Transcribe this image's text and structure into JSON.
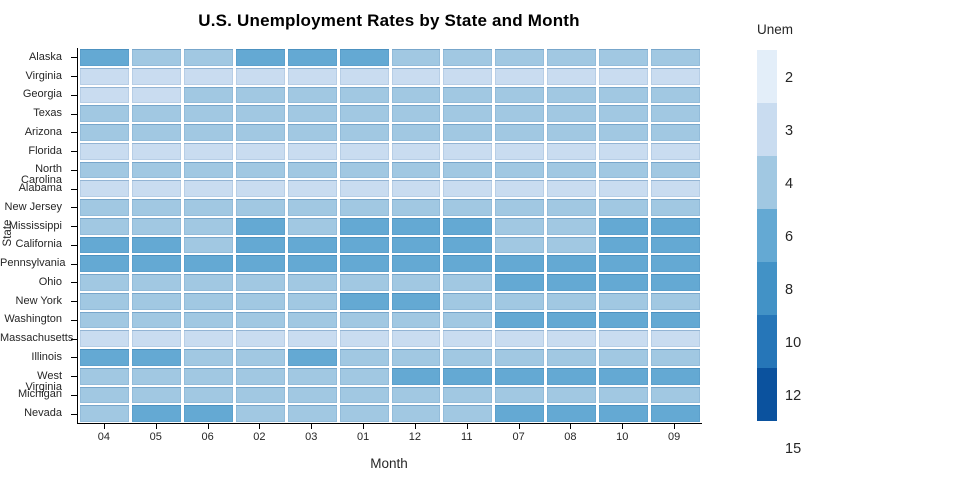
{
  "title": "U.S. Unemployment Rates by State and Month",
  "axes": {
    "x_title": "Month",
    "y_title": "State"
  },
  "legend": {
    "title": "Unem",
    "labels": [
      "2",
      "3",
      "4",
      "6",
      "8",
      "10",
      "12",
      "15"
    ],
    "swatch_colors": [
      "#e3eef9",
      "#c9dcf0",
      "#a1c8e2",
      "#64a9d3",
      "#4292c6",
      "#2676b8",
      "#0b529e"
    ]
  },
  "chart_data": {
    "type": "heatmap",
    "title": "U.S. Unemployment Rates by State and Month",
    "xlabel": "Month",
    "ylabel": "State",
    "legend_title": "Unem",
    "grid": false,
    "legend_position": "right",
    "color_scheme": "blues",
    "color_bins": [
      2,
      3,
      4,
      6,
      8,
      10,
      12,
      15
    ],
    "bin_colors": [
      "#e3eef9",
      "#c9dcf0",
      "#a1c8e2",
      "#64a9d3",
      "#4292c6",
      "#2676b8",
      "#0b529e"
    ],
    "x": [
      "04",
      "05",
      "06",
      "02",
      "03",
      "01",
      "12",
      "11",
      "07",
      "08",
      "10",
      "09"
    ],
    "y": [
      "Alaska",
      "Virginia",
      "Georgia",
      "Texas",
      "Arizona",
      "Florida",
      "North Carolina",
      "Alabama",
      "New Jersey",
      "Mississippi",
      "California",
      "Pennsylvania",
      "Ohio",
      "New York",
      "Washington",
      "Massachusetts",
      "Illinois",
      "West Virginia",
      "Michigan",
      "Nevada"
    ],
    "values": [
      [
        7,
        5,
        5,
        7,
        7,
        7,
        5,
        5,
        5,
        5,
        5,
        5
      ],
      [
        3.5,
        3.5,
        3.5,
        3.5,
        3.5,
        3.5,
        3.5,
        3.5,
        3.5,
        3.5,
        3.5,
        3.5
      ],
      [
        3.5,
        3.5,
        5,
        5,
        5,
        5,
        5,
        5,
        5,
        5,
        5,
        5
      ],
      [
        5,
        5,
        5,
        5,
        5,
        5,
        5,
        5,
        5,
        5,
        5,
        5
      ],
      [
        5,
        5,
        5,
        5,
        5,
        5,
        5,
        5,
        5,
        5,
        5,
        5
      ],
      [
        3.5,
        3.5,
        3.5,
        3.5,
        3.5,
        3.5,
        3.5,
        3.5,
        3.5,
        3.5,
        3.5,
        3.5
      ],
      [
        5,
        5,
        5,
        5,
        5,
        5,
        5,
        5,
        5,
        5,
        5,
        5
      ],
      [
        3.5,
        3.5,
        3.5,
        3.5,
        3.5,
        3.5,
        3.5,
        3.5,
        3.5,
        3.5,
        3.5,
        3.5
      ],
      [
        5,
        5,
        5,
        5,
        5,
        5,
        5,
        5,
        5,
        5,
        5,
        5
      ],
      [
        5,
        5,
        5,
        7,
        5,
        7,
        7,
        7,
        5,
        5,
        7,
        7
      ],
      [
        7,
        7,
        5,
        7,
        7,
        7,
        7,
        7,
        5,
        5,
        7,
        7
      ],
      [
        7,
        7,
        7,
        7,
        7,
        7,
        7,
        7,
        7,
        7,
        7,
        7
      ],
      [
        5,
        5,
        5,
        5,
        5,
        5,
        5,
        5,
        7,
        7,
        7,
        7
      ],
      [
        5,
        5,
        5,
        5,
        5,
        7,
        7,
        5,
        5,
        5,
        5,
        5
      ],
      [
        5,
        5,
        5,
        5,
        5,
        5,
        5,
        5,
        7,
        7,
        7,
        7
      ],
      [
        3.5,
        3.5,
        3.5,
        3.5,
        3.5,
        3.5,
        3.5,
        3.5,
        3.5,
        3.5,
        3.5,
        3.5
      ],
      [
        7,
        7,
        5,
        5,
        7,
        5,
        5,
        5,
        5,
        5,
        5,
        5
      ],
      [
        5,
        5,
        5,
        5,
        5,
        5,
        7,
        7,
        7,
        7,
        7,
        7
      ],
      [
        5,
        5,
        5,
        5,
        5,
        5,
        5,
        5,
        5,
        5,
        5,
        5
      ],
      [
        5,
        7,
        7,
        5,
        5,
        5,
        5,
        5,
        7,
        7,
        7,
        7
      ]
    ]
  }
}
